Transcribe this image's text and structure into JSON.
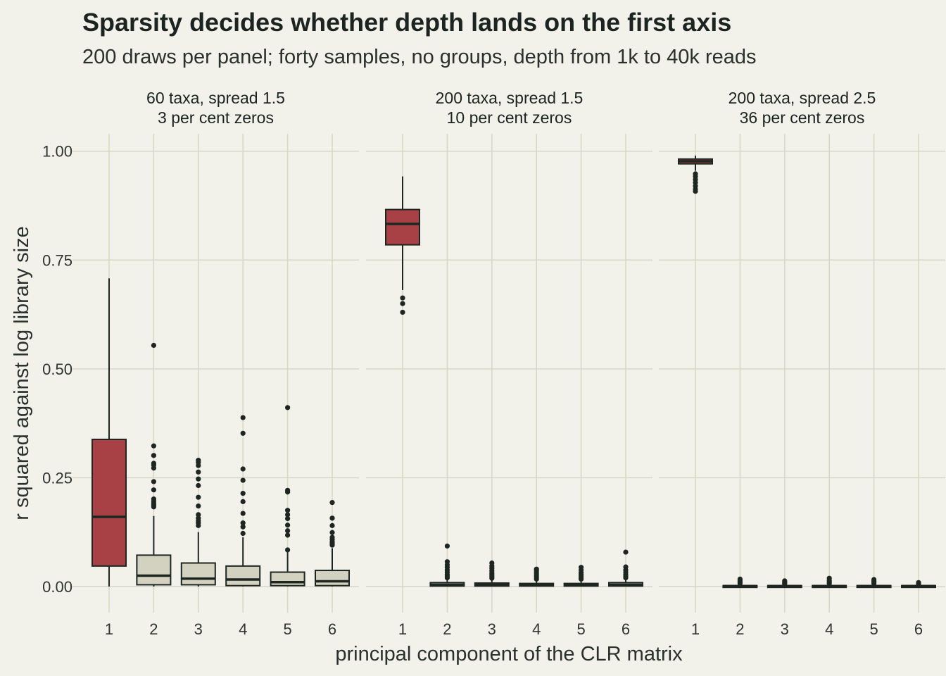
{
  "colors": {
    "background": "#f2f1ea",
    "grid": "#d8d7c6",
    "highlight_fill": "#a84145",
    "other_fill": "#d3d2c0",
    "stroke": "#1e2622",
    "text": "#1b2420"
  },
  "chart_data": {
    "type": "boxplot",
    "title": "Sparsity decides whether depth lands on the first axis",
    "subtitle": "200 draws per panel; forty samples, no groups, depth from 1k to 40k reads",
    "xlabel": "principal component of the CLR matrix",
    "ylabel": "r squared against log library size",
    "ylim": [
      -0.06,
      1.04
    ],
    "yticks": [
      "0.00",
      "0.25",
      "0.50",
      "0.75",
      "1.00"
    ],
    "categories": [
      "1",
      "2",
      "3",
      "4",
      "5",
      "6"
    ],
    "highlighted_category": "1",
    "panels": [
      {
        "strip_line1": "60 taxa, spread 1.5",
        "strip_line2": "3 per cent zeros",
        "boxes": [
          {
            "pc": "1",
            "whisker_low": 0.0,
            "q1": 0.047,
            "median": 0.16,
            "q3": 0.338,
            "whisker_high": 0.708,
            "outliers": []
          },
          {
            "pc": "2",
            "whisker_low": 0.0,
            "q1": 0.004,
            "median": 0.025,
            "q3": 0.072,
            "whisker_high": 0.162,
            "outliers": [
              0.183,
              0.187,
              0.191,
              0.196,
              0.201,
              0.222,
              0.241,
              0.272,
              0.279,
              0.283,
              0.301,
              0.323,
              0.554
            ]
          },
          {
            "pc": "3",
            "whisker_low": 0.0,
            "q1": 0.004,
            "median": 0.018,
            "q3": 0.054,
            "whisker_high": 0.125,
            "outliers": [
              0.14,
              0.146,
              0.151,
              0.157,
              0.165,
              0.185,
              0.205,
              0.232,
              0.247,
              0.263,
              0.278,
              0.285,
              0.29
            ]
          },
          {
            "pc": "4",
            "whisker_low": 0.0,
            "q1": 0.002,
            "median": 0.016,
            "q3": 0.047,
            "whisker_high": 0.113,
            "outliers": [
              0.122,
              0.137,
              0.146,
              0.168,
              0.195,
              0.214,
              0.244,
              0.27,
              0.352,
              0.388
            ]
          },
          {
            "pc": "5",
            "whisker_low": 0.0,
            "q1": 0.002,
            "median": 0.01,
            "q3": 0.033,
            "whisker_high": 0.08,
            "outliers": [
              0.084,
              0.118,
              0.128,
              0.141,
              0.156,
              0.165,
              0.175,
              0.217,
              0.221,
              0.411
            ]
          },
          {
            "pc": "6",
            "whisker_low": 0.0,
            "q1": 0.002,
            "median": 0.012,
            "q3": 0.037,
            "whisker_high": 0.088,
            "outliers": [
              0.095,
              0.099,
              0.103,
              0.108,
              0.113,
              0.124,
              0.14,
              0.157,
              0.193
            ]
          }
        ]
      },
      {
        "strip_line1": "200 taxa, spread 1.5",
        "strip_line2": "10 per cent zeros",
        "boxes": [
          {
            "pc": "1",
            "whisker_low": 0.681,
            "q1": 0.785,
            "median": 0.833,
            "q3": 0.866,
            "whisker_high": 0.942,
            "outliers": [
              0.63,
              0.65,
              0.663
            ]
          },
          {
            "pc": "2",
            "whisker_low": 0.0,
            "q1": 0.001,
            "median": 0.004,
            "q3": 0.009,
            "whisker_high": 0.018,
            "outliers": [
              0.02,
              0.024,
              0.028,
              0.033,
              0.038,
              0.044,
              0.05,
              0.057,
              0.093
            ]
          },
          {
            "pc": "3",
            "whisker_low": 0.0,
            "q1": 0.001,
            "median": 0.004,
            "q3": 0.008,
            "whisker_high": 0.017,
            "outliers": [
              0.019,
              0.023,
              0.027,
              0.031,
              0.036,
              0.042,
              0.047,
              0.054
            ]
          },
          {
            "pc": "4",
            "whisker_low": 0.0,
            "q1": 0.001,
            "median": 0.003,
            "q3": 0.007,
            "whisker_high": 0.015,
            "outliers": [
              0.017,
              0.021,
              0.025,
              0.029,
              0.033,
              0.037,
              0.04
            ]
          },
          {
            "pc": "5",
            "whisker_low": 0.0,
            "q1": 0.001,
            "median": 0.003,
            "q3": 0.007,
            "whisker_high": 0.015,
            "outliers": [
              0.017,
              0.02,
              0.024,
              0.028,
              0.032,
              0.038,
              0.044
            ]
          },
          {
            "pc": "6",
            "whisker_low": 0.0,
            "q1": 0.001,
            "median": 0.004,
            "q3": 0.009,
            "whisker_high": 0.018,
            "outliers": [
              0.02,
              0.024,
              0.028,
              0.033,
              0.038,
              0.045,
              0.079
            ]
          }
        ]
      },
      {
        "strip_line1": "200 taxa, spread 2.5",
        "strip_line2": "36 per cent zeros",
        "boxes": [
          {
            "pc": "1",
            "whisker_low": 0.955,
            "q1": 0.971,
            "median": 0.977,
            "q3": 0.982,
            "whisker_high": 0.99,
            "outliers": [
              0.908,
              0.913,
              0.92,
              0.928,
              0.935,
              0.942,
              0.948
            ]
          },
          {
            "pc": "2",
            "whisker_low": 0.0,
            "q1": 0.0,
            "median": 0.001,
            "q3": 0.002,
            "whisker_high": 0.005,
            "outliers": [
              0.007,
              0.01,
              0.013,
              0.017
            ]
          },
          {
            "pc": "3",
            "whisker_low": 0.0,
            "q1": 0.0,
            "median": 0.001,
            "q3": 0.002,
            "whisker_high": 0.005,
            "outliers": [
              0.006,
              0.008,
              0.01,
              0.013
            ]
          },
          {
            "pc": "4",
            "whisker_low": 0.0,
            "q1": 0.0,
            "median": 0.001,
            "q3": 0.002,
            "whisker_high": 0.005,
            "outliers": [
              0.007,
              0.01,
              0.014,
              0.019
            ]
          },
          {
            "pc": "5",
            "whisker_low": 0.0,
            "q1": 0.0,
            "median": 0.001,
            "q3": 0.002,
            "whisker_high": 0.005,
            "outliers": [
              0.007,
              0.01,
              0.013,
              0.016
            ]
          },
          {
            "pc": "6",
            "whisker_low": 0.0,
            "q1": 0.0,
            "median": 0.001,
            "q3": 0.002,
            "whisker_high": 0.004,
            "outliers": [
              0.005,
              0.007,
              0.009
            ]
          }
        ]
      }
    ]
  }
}
